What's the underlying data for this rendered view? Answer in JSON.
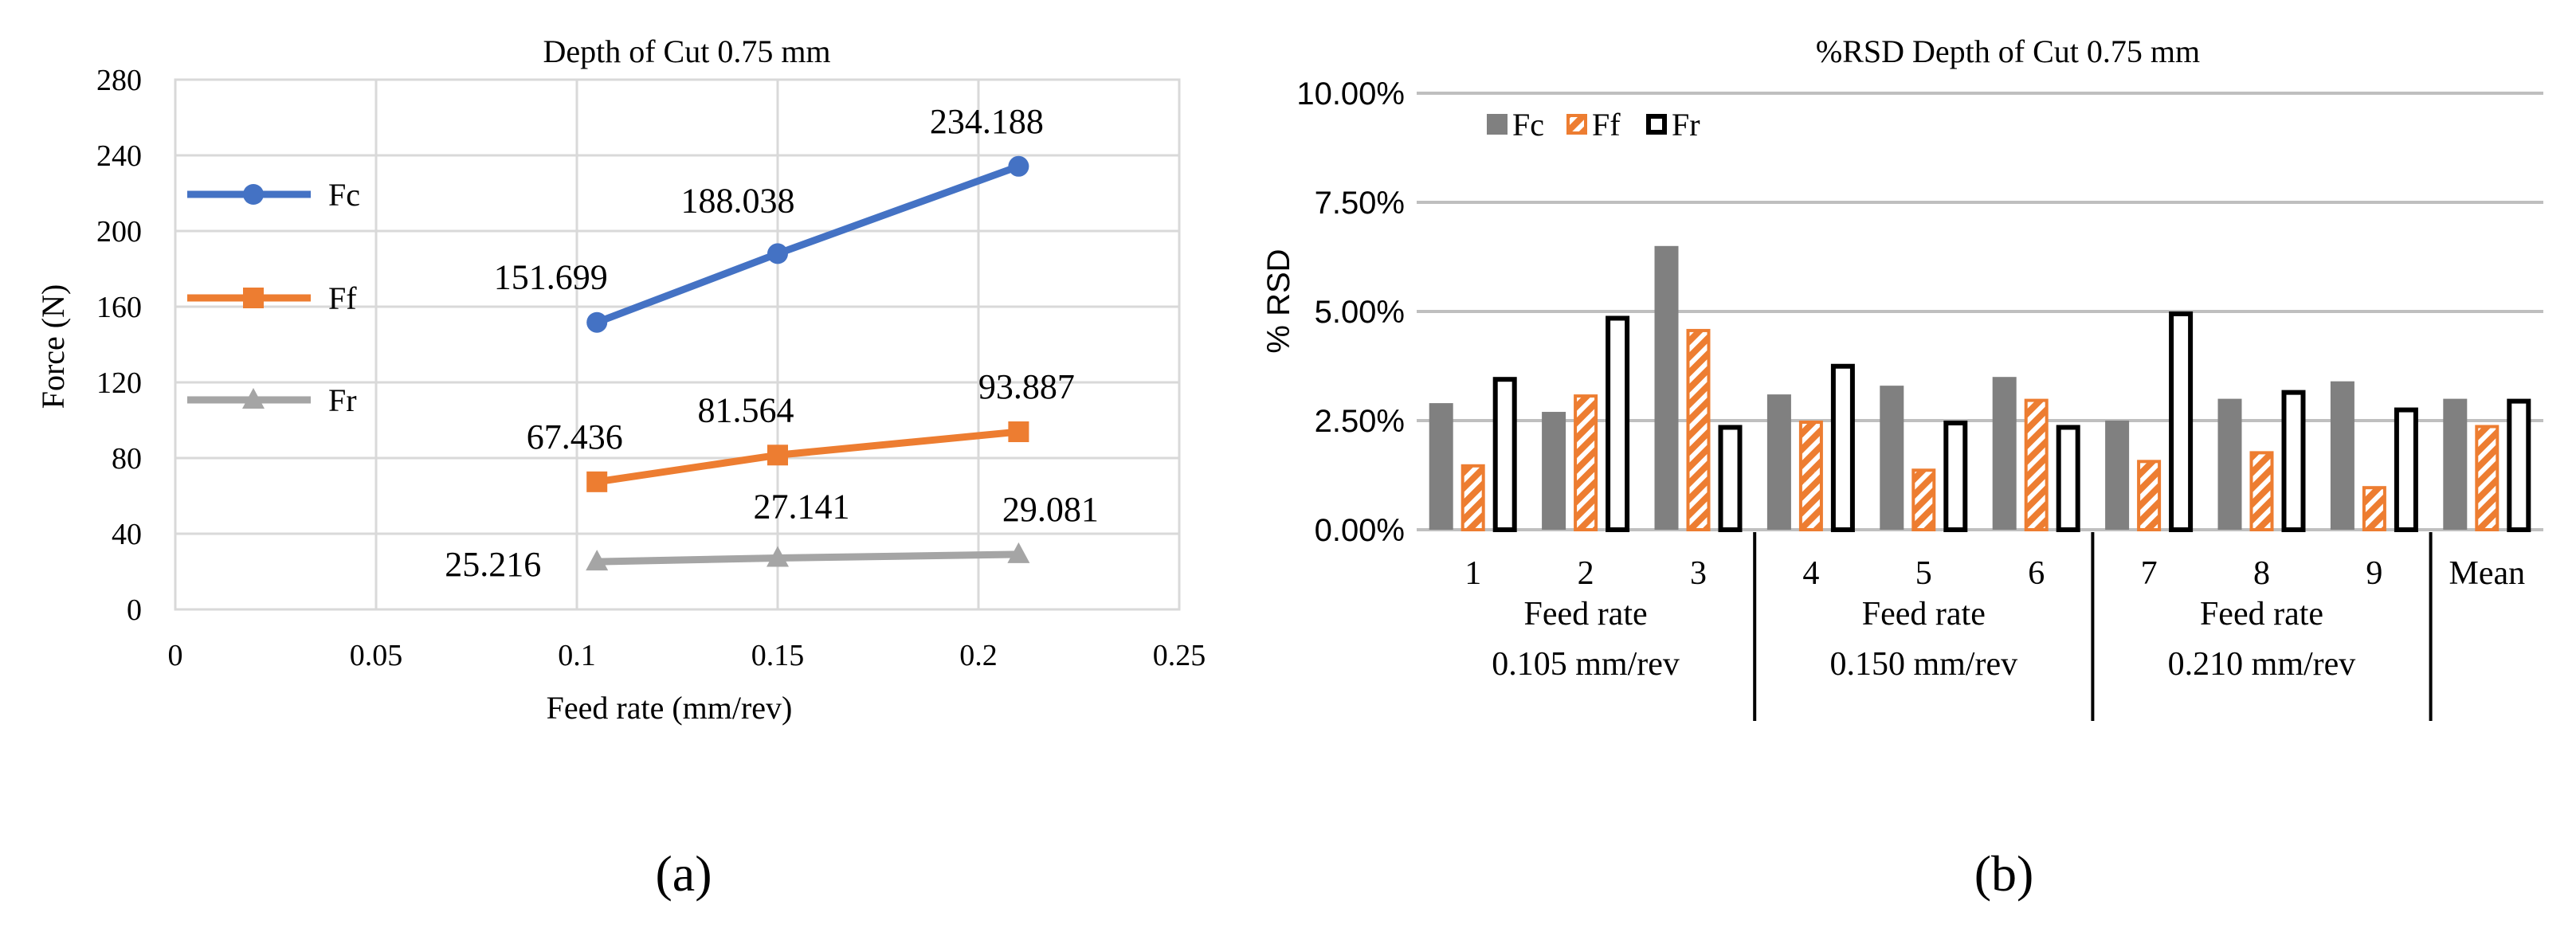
{
  "chart_data": [
    {
      "type": "line",
      "title": "Depth of Cut 0.75 mm",
      "xlabel": "Feed rate (mm/rev)",
      "ylabel": "Force (N)",
      "xlim": [
        0,
        0.25
      ],
      "ylim": [
        0,
        280
      ],
      "x_ticks": [
        "0",
        "0.05",
        "0.1",
        "0.15",
        "0.2",
        "0.25"
      ],
      "y_ticks": [
        "0",
        "40",
        "80",
        "120",
        "160",
        "200",
        "240",
        "280"
      ],
      "grid": true,
      "legend_position": "left",
      "panel_label": "(a)",
      "x": [
        0.105,
        0.15,
        0.21
      ],
      "series": [
        {
          "name": "Fc",
          "color": "#4472C4",
          "marker": "circle",
          "values": [
            151.699,
            188.038,
            234.188
          ],
          "labels": [
            "151.699",
            "188.038",
            "234.188"
          ]
        },
        {
          "name": "Ff",
          "color": "#ED7D31",
          "marker": "square",
          "values": [
            67.436,
            81.564,
            93.887
          ],
          "labels": [
            "67.436",
            "81.564",
            "93.887"
          ]
        },
        {
          "name": "Fr",
          "color": "#A5A5A5",
          "marker": "triangle",
          "values": [
            25.216,
            27.141,
            29.081
          ],
          "labels": [
            "25.216",
            "27.141",
            "29.081"
          ]
        }
      ]
    },
    {
      "type": "bar",
      "title": "%RSD Depth of Cut 0.75 mm",
      "xlabel": "",
      "ylabel": "% RSD",
      "ylim": [
        0,
        0.1
      ],
      "y_ticks": [
        "0.00%",
        "2.50%",
        "5.00%",
        "7.50%",
        "10.00%"
      ],
      "grid": true,
      "legend_position": "top-left",
      "panel_label": "(b)",
      "categories": [
        "1",
        "2",
        "3",
        "4",
        "5",
        "6",
        "7",
        "8",
        "9",
        "Mean"
      ],
      "groups": [
        {
          "line1": "Feed rate",
          "line2": "0.105 mm/rev"
        },
        {
          "line1": "Feed rate",
          "line2": "0.150 mm/rev"
        },
        {
          "line1": "Feed rate",
          "line2": "0.210 mm/rev"
        }
      ],
      "series": [
        {
          "name": "Fc",
          "style": "solid",
          "color": "#808080",
          "values": [
            0.029,
            0.027,
            0.065,
            0.031,
            0.033,
            0.035,
            0.025,
            0.03,
            0.034,
            0.03
          ]
        },
        {
          "name": "Ff",
          "style": "hatched",
          "color": "#ED7D31",
          "values": [
            0.015,
            0.031,
            0.046,
            0.025,
            0.014,
            0.03,
            0.016,
            0.018,
            0.01,
            0.024
          ]
        },
        {
          "name": "Fr",
          "style": "outline",
          "color": "#000000",
          "values": [
            0.035,
            0.049,
            0.024,
            0.038,
            0.025,
            0.024,
            0.05,
            0.032,
            0.028,
            0.03
          ]
        }
      ]
    }
  ]
}
